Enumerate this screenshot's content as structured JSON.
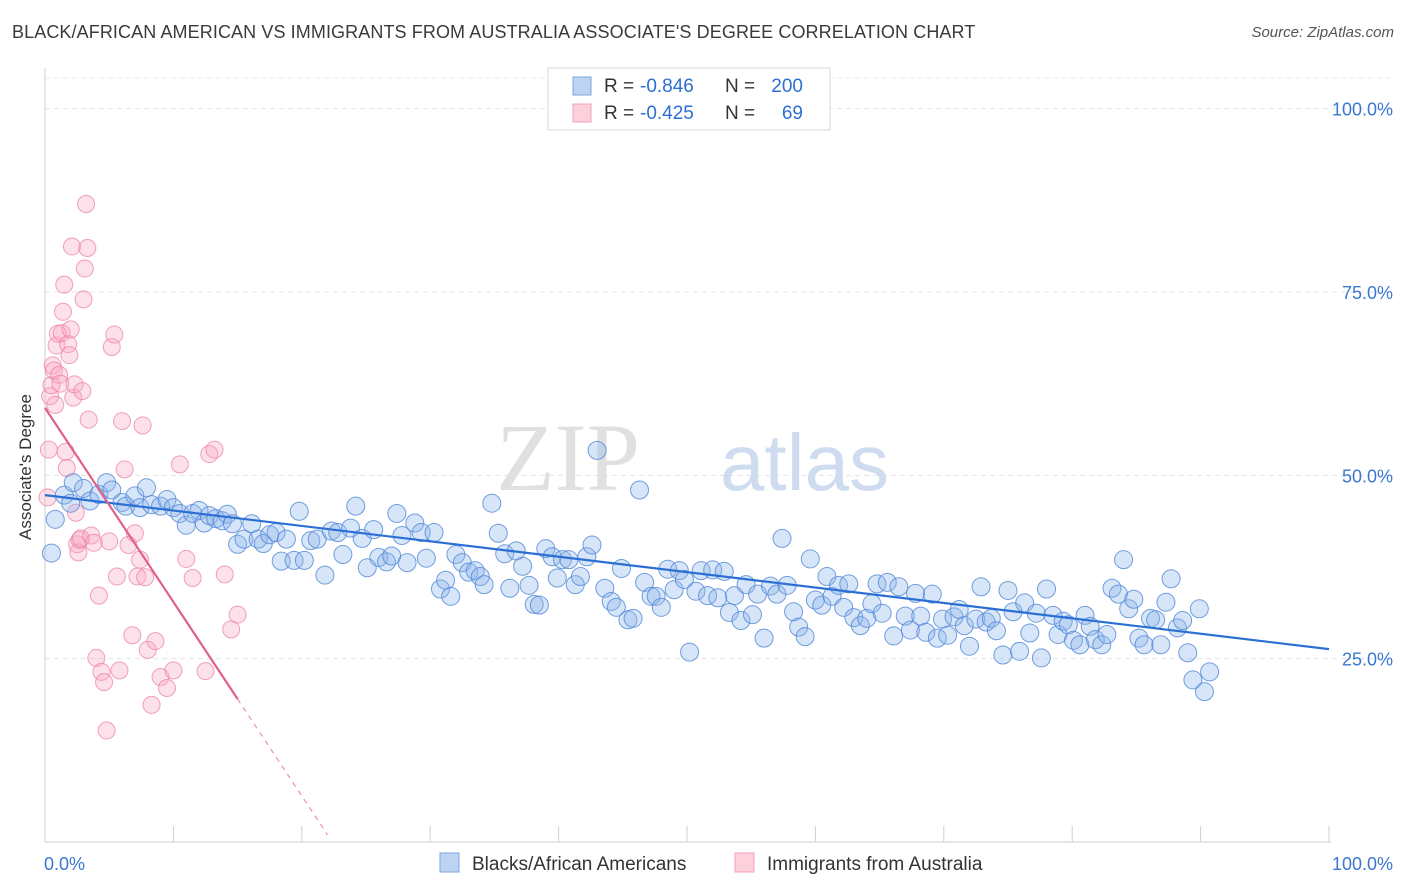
{
  "title": "BLACK/AFRICAN AMERICAN VS IMMIGRANTS FROM AUSTRALIA ASSOCIATE'S DEGREE CORRELATION CHART",
  "source": "Source: ZipAtlas.com",
  "watermark": {
    "zip": "ZIP",
    "atlas": "atlas"
  },
  "legend_stats": [
    {
      "r_label": "R =",
      "r_value": "-0.846",
      "n_label": "N =",
      "n_value": "200"
    },
    {
      "r_label": "R =",
      "r_value": "-0.425",
      "n_label": "N =",
      "n_value": "69"
    }
  ],
  "chart_data": {
    "type": "scatter",
    "title": "BLACK/AFRICAN AMERICAN VS IMMIGRANTS FROM AUSTRALIA ASSOCIATE'S DEGREE CORRELATION CHART",
    "xlabel": "",
    "ylabel": "Associate's Degree",
    "xlim": [
      0,
      100
    ],
    "ylim": [
      0,
      105
    ],
    "x_tick_labels": [
      "0.0%",
      "100.0%"
    ],
    "y_tick_labels": [
      "100.0%",
      "75.0%",
      "50.0%",
      "25.0%"
    ],
    "y_ticks": [
      100,
      75,
      50,
      25
    ],
    "grid": true,
    "legend_position": "bottom",
    "colors": {
      "blue": "#5b8fd9",
      "blue_line": "#2b6fd4",
      "pink": "#f08aa8",
      "pink_line": "#e0608a",
      "tick_text": "#3a78d0"
    },
    "series": [
      {
        "name": "Blacks/African Americans",
        "color": "#5b8fd9",
        "trend": {
          "x": [
            0,
            100
          ],
          "y": [
            47.3,
            26.3
          ]
        },
        "points": [
          [
            0.5,
            39.4
          ],
          [
            0.8,
            44.0
          ],
          [
            1.5,
            47.3
          ],
          [
            2.0,
            46.2
          ],
          [
            2.2,
            49.0
          ],
          [
            3.0,
            48.2
          ],
          [
            3.5,
            46.5
          ],
          [
            4.2,
            47.4
          ],
          [
            4.8,
            49.0
          ],
          [
            5.2,
            48.0
          ],
          [
            6.0,
            46.3
          ],
          [
            6.3,
            45.8
          ],
          [
            7.0,
            47.2
          ],
          [
            7.4,
            45.6
          ],
          [
            7.9,
            48.3
          ],
          [
            8.3,
            46.0
          ],
          [
            9.0,
            45.8
          ],
          [
            9.5,
            46.7
          ],
          [
            10.0,
            45.6
          ],
          [
            10.5,
            44.8
          ],
          [
            11.0,
            43.2
          ],
          [
            11.5,
            44.8
          ],
          [
            12.0,
            45.2
          ],
          [
            12.4,
            43.5
          ],
          [
            12.8,
            44.5
          ],
          [
            13.3,
            44.1
          ],
          [
            13.8,
            43.8
          ],
          [
            14.2,
            44.7
          ],
          [
            14.6,
            43.4
          ],
          [
            15.0,
            40.6
          ],
          [
            15.5,
            41.3
          ],
          [
            16.1,
            43.4
          ],
          [
            16.6,
            41.3
          ],
          [
            17.0,
            40.7
          ],
          [
            17.5,
            41.9
          ],
          [
            18.0,
            42.2
          ],
          [
            18.4,
            38.3
          ],
          [
            18.8,
            41.3
          ],
          [
            19.4,
            38.4
          ],
          [
            19.8,
            45.1
          ],
          [
            20.2,
            38.4
          ],
          [
            20.7,
            41.1
          ],
          [
            21.2,
            41.3
          ],
          [
            21.8,
            36.4
          ],
          [
            22.3,
            42.4
          ],
          [
            22.8,
            42.2
          ],
          [
            23.2,
            39.2
          ],
          [
            23.8,
            42.8
          ],
          [
            24.2,
            45.8
          ],
          [
            24.7,
            41.4
          ],
          [
            25.1,
            37.4
          ],
          [
            25.6,
            42.6
          ],
          [
            26.0,
            38.8
          ],
          [
            26.6,
            38.2
          ],
          [
            27.0,
            39.0
          ],
          [
            27.4,
            44.8
          ],
          [
            27.8,
            41.8
          ],
          [
            28.2,
            38.1
          ],
          [
            28.8,
            43.5
          ],
          [
            29.3,
            42.2
          ],
          [
            29.7,
            38.7
          ],
          [
            30.3,
            42.2
          ],
          [
            30.8,
            34.5
          ],
          [
            31.2,
            35.7
          ],
          [
            31.6,
            33.5
          ],
          [
            32.0,
            39.2
          ],
          [
            32.5,
            38.1
          ],
          [
            33.0,
            36.8
          ],
          [
            33.5,
            37.0
          ],
          [
            33.9,
            36.2
          ],
          [
            34.2,
            35.1
          ],
          [
            34.8,
            46.2
          ],
          [
            35.3,
            42.1
          ],
          [
            35.8,
            39.3
          ],
          [
            36.2,
            34.6
          ],
          [
            36.7,
            39.7
          ],
          [
            37.2,
            37.6
          ],
          [
            37.7,
            35.0
          ],
          [
            38.1,
            32.4
          ],
          [
            38.5,
            32.3
          ],
          [
            39.0,
            40.0
          ],
          [
            39.5,
            38.9
          ],
          [
            39.9,
            36.0
          ],
          [
            40.3,
            38.5
          ],
          [
            40.8,
            38.5
          ],
          [
            41.3,
            35.1
          ],
          [
            41.7,
            36.2
          ],
          [
            42.2,
            38.9
          ],
          [
            42.6,
            40.5
          ],
          [
            43.0,
            53.4
          ],
          [
            43.6,
            34.6
          ],
          [
            44.1,
            32.8
          ],
          [
            44.5,
            32.0
          ],
          [
            44.9,
            37.3
          ],
          [
            45.4,
            30.3
          ],
          [
            45.8,
            30.5
          ],
          [
            46.3,
            48.0
          ],
          [
            46.7,
            35.4
          ],
          [
            47.2,
            33.5
          ],
          [
            47.6,
            33.5
          ],
          [
            48.0,
            32.0
          ],
          [
            48.5,
            37.2
          ],
          [
            49.0,
            34.4
          ],
          [
            49.4,
            37.0
          ],
          [
            49.8,
            35.8
          ],
          [
            50.2,
            25.9
          ],
          [
            50.7,
            34.2
          ],
          [
            51.1,
            37.0
          ],
          [
            51.6,
            33.6
          ],
          [
            52.0,
            37.1
          ],
          [
            52.4,
            33.3
          ],
          [
            52.9,
            36.9
          ],
          [
            53.3,
            31.3
          ],
          [
            53.7,
            33.6
          ],
          [
            54.2,
            30.2
          ],
          [
            54.6,
            35.1
          ],
          [
            55.1,
            31.0
          ],
          [
            55.5,
            33.8
          ],
          [
            56.0,
            27.8
          ],
          [
            56.5,
            34.9
          ],
          [
            57.0,
            33.8
          ],
          [
            57.4,
            41.4
          ],
          [
            57.8,
            35.0
          ],
          [
            58.3,
            31.4
          ],
          [
            58.7,
            29.3
          ],
          [
            59.2,
            28.0
          ],
          [
            59.6,
            38.6
          ],
          [
            60.0,
            33.0
          ],
          [
            60.5,
            32.3
          ],
          [
            60.9,
            36.2
          ],
          [
            61.3,
            33.5
          ],
          [
            61.8,
            35.0
          ],
          [
            62.2,
            32.0
          ],
          [
            62.6,
            35.2
          ],
          [
            63.0,
            30.6
          ],
          [
            63.5,
            29.5
          ],
          [
            64.0,
            30.5
          ],
          [
            64.4,
            32.5
          ],
          [
            64.8,
            35.2
          ],
          [
            65.2,
            31.2
          ],
          [
            65.6,
            35.4
          ],
          [
            66.1,
            28.1
          ],
          [
            66.5,
            34.8
          ],
          [
            67.0,
            30.8
          ],
          [
            67.4,
            28.9
          ],
          [
            67.8,
            33.9
          ],
          [
            68.2,
            30.8
          ],
          [
            68.6,
            28.6
          ],
          [
            69.1,
            33.8
          ],
          [
            69.5,
            27.8
          ],
          [
            69.9,
            30.4
          ],
          [
            70.3,
            28.2
          ],
          [
            70.8,
            30.7
          ],
          [
            71.2,
            31.7
          ],
          [
            71.6,
            29.5
          ],
          [
            72.0,
            26.7
          ],
          [
            72.5,
            30.4
          ],
          [
            72.9,
            34.8
          ],
          [
            73.3,
            30.0
          ],
          [
            73.7,
            30.5
          ],
          [
            74.1,
            28.8
          ],
          [
            74.6,
            25.5
          ],
          [
            75.0,
            34.3
          ],
          [
            75.4,
            31.4
          ],
          [
            75.9,
            26.0
          ],
          [
            76.3,
            32.6
          ],
          [
            76.7,
            28.5
          ],
          [
            77.2,
            31.2
          ],
          [
            77.6,
            25.1
          ],
          [
            78.0,
            34.5
          ],
          [
            78.5,
            30.9
          ],
          [
            78.9,
            28.3
          ],
          [
            79.3,
            30.1
          ],
          [
            79.7,
            29.6
          ],
          [
            80.1,
            27.5
          ],
          [
            80.6,
            26.9
          ],
          [
            81.0,
            30.9
          ],
          [
            81.4,
            29.4
          ],
          [
            81.8,
            27.6
          ],
          [
            82.3,
            26.9
          ],
          [
            82.7,
            28.3
          ],
          [
            83.1,
            34.6
          ],
          [
            83.6,
            33.8
          ],
          [
            84.0,
            38.5
          ],
          [
            84.4,
            31.8
          ],
          [
            84.8,
            33.1
          ],
          [
            85.2,
            27.8
          ],
          [
            85.6,
            26.9
          ],
          [
            86.1,
            30.5
          ],
          [
            86.5,
            30.3
          ],
          [
            86.9,
            26.9
          ],
          [
            87.3,
            32.7
          ],
          [
            87.7,
            35.9
          ],
          [
            88.2,
            29.2
          ],
          [
            88.6,
            30.2
          ],
          [
            89.0,
            25.8
          ],
          [
            89.4,
            22.1
          ],
          [
            89.9,
            31.8
          ],
          [
            90.3,
            20.5
          ],
          [
            90.7,
            23.2
          ]
        ]
      },
      {
        "name": "Immigrants from Australia",
        "color": "#f08aa8",
        "trend": {
          "x": [
            0,
            15.0
          ],
          "y": [
            59.2,
            19.5
          ]
        },
        "trend_dashed": {
          "x": [
            15.0,
            22.0
          ],
          "y": [
            19.5,
            1.0
          ]
        },
        "points": [
          [
            0.2,
            47.0
          ],
          [
            0.3,
            53.5
          ],
          [
            0.4,
            60.8
          ],
          [
            0.5,
            62.3
          ],
          [
            0.6,
            65.0
          ],
          [
            0.7,
            64.3
          ],
          [
            0.8,
            59.6
          ],
          [
            0.9,
            67.7
          ],
          [
            1.0,
            69.3
          ],
          [
            1.1,
            63.7
          ],
          [
            1.2,
            62.5
          ],
          [
            1.3,
            69.4
          ],
          [
            1.4,
            72.3
          ],
          [
            1.5,
            76.0
          ],
          [
            1.6,
            53.2
          ],
          [
            1.7,
            51.0
          ],
          [
            1.8,
            67.9
          ],
          [
            1.9,
            66.4
          ],
          [
            2.0,
            69.9
          ],
          [
            2.1,
            81.2
          ],
          [
            2.2,
            60.6
          ],
          [
            2.3,
            62.4
          ],
          [
            2.4,
            44.9
          ],
          [
            2.5,
            40.6
          ],
          [
            2.6,
            39.5
          ],
          [
            2.7,
            41.2
          ],
          [
            2.8,
            41.4
          ],
          [
            2.9,
            61.5
          ],
          [
            3.0,
            74.0
          ],
          [
            3.1,
            78.2
          ],
          [
            3.2,
            87.0
          ],
          [
            3.3,
            81.0
          ],
          [
            3.4,
            57.6
          ],
          [
            3.6,
            41.8
          ],
          [
            3.8,
            40.8
          ],
          [
            4.0,
            25.1
          ],
          [
            4.2,
            33.6
          ],
          [
            4.4,
            23.2
          ],
          [
            4.6,
            21.8
          ],
          [
            4.8,
            15.2
          ],
          [
            5.0,
            41.0
          ],
          [
            5.2,
            67.5
          ],
          [
            5.4,
            69.2
          ],
          [
            5.6,
            36.2
          ],
          [
            5.8,
            23.4
          ],
          [
            6.0,
            57.4
          ],
          [
            6.2,
            50.8
          ],
          [
            6.5,
            40.5
          ],
          [
            6.8,
            28.2
          ],
          [
            7.0,
            42.1
          ],
          [
            7.2,
            36.2
          ],
          [
            7.4,
            38.5
          ],
          [
            7.6,
            56.8
          ],
          [
            7.8,
            36.1
          ],
          [
            8.0,
            26.2
          ],
          [
            8.3,
            18.7
          ],
          [
            8.6,
            27.4
          ],
          [
            9.0,
            22.5
          ],
          [
            9.5,
            21.0
          ],
          [
            10.0,
            23.4
          ],
          [
            10.5,
            51.5
          ],
          [
            11.0,
            38.6
          ],
          [
            11.5,
            36.0
          ],
          [
            12.5,
            23.3
          ],
          [
            12.8,
            52.9
          ],
          [
            13.2,
            53.5
          ],
          [
            14.0,
            36.5
          ],
          [
            14.5,
            29.0
          ],
          [
            15.0,
            31.0
          ]
        ]
      }
    ]
  },
  "legend_bottom": [
    "Blacks/African Americans",
    "Immigrants from Australia"
  ]
}
